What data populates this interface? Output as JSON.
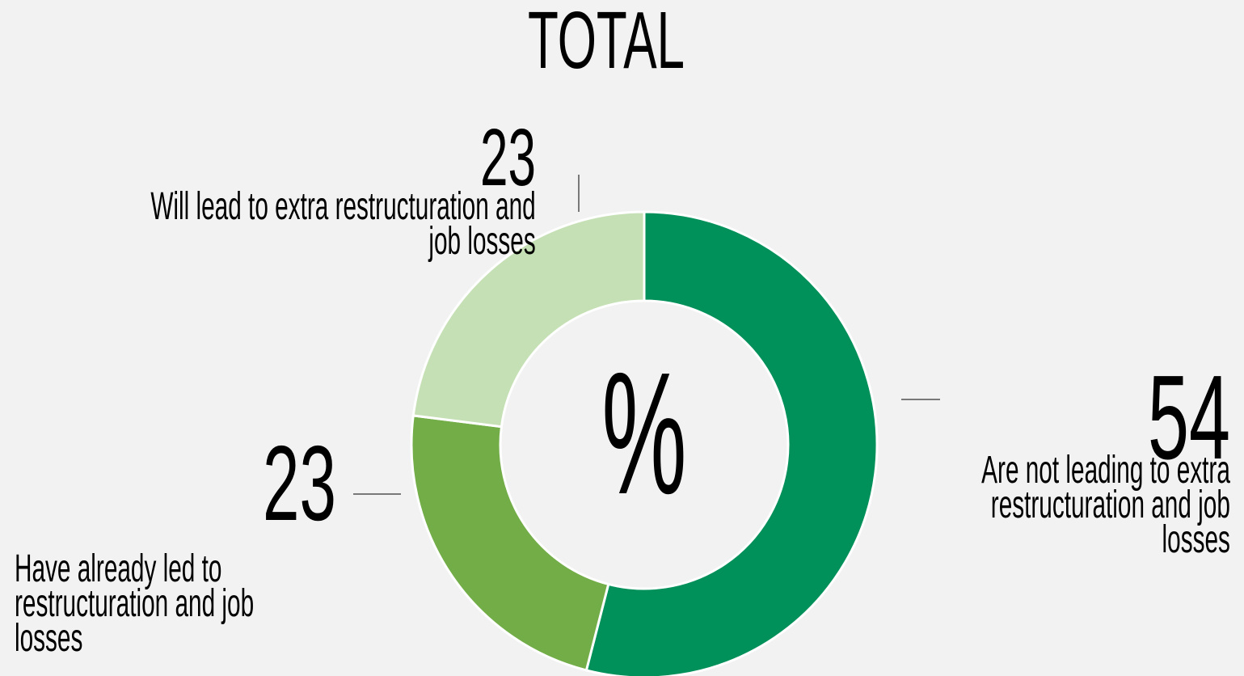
{
  "chart_data": {
    "type": "donut",
    "title": "TOTAL",
    "center_label": "%",
    "categories": [
      "Are not leading to extra restructuration and job losses",
      "Have already led to restructuration and job losses",
      "Will lead to extra restructuration and job losses"
    ],
    "values": [
      54,
      23,
      23
    ],
    "colors": [
      "#00915a",
      "#72ad47",
      "#c5e0b4"
    ]
  }
}
